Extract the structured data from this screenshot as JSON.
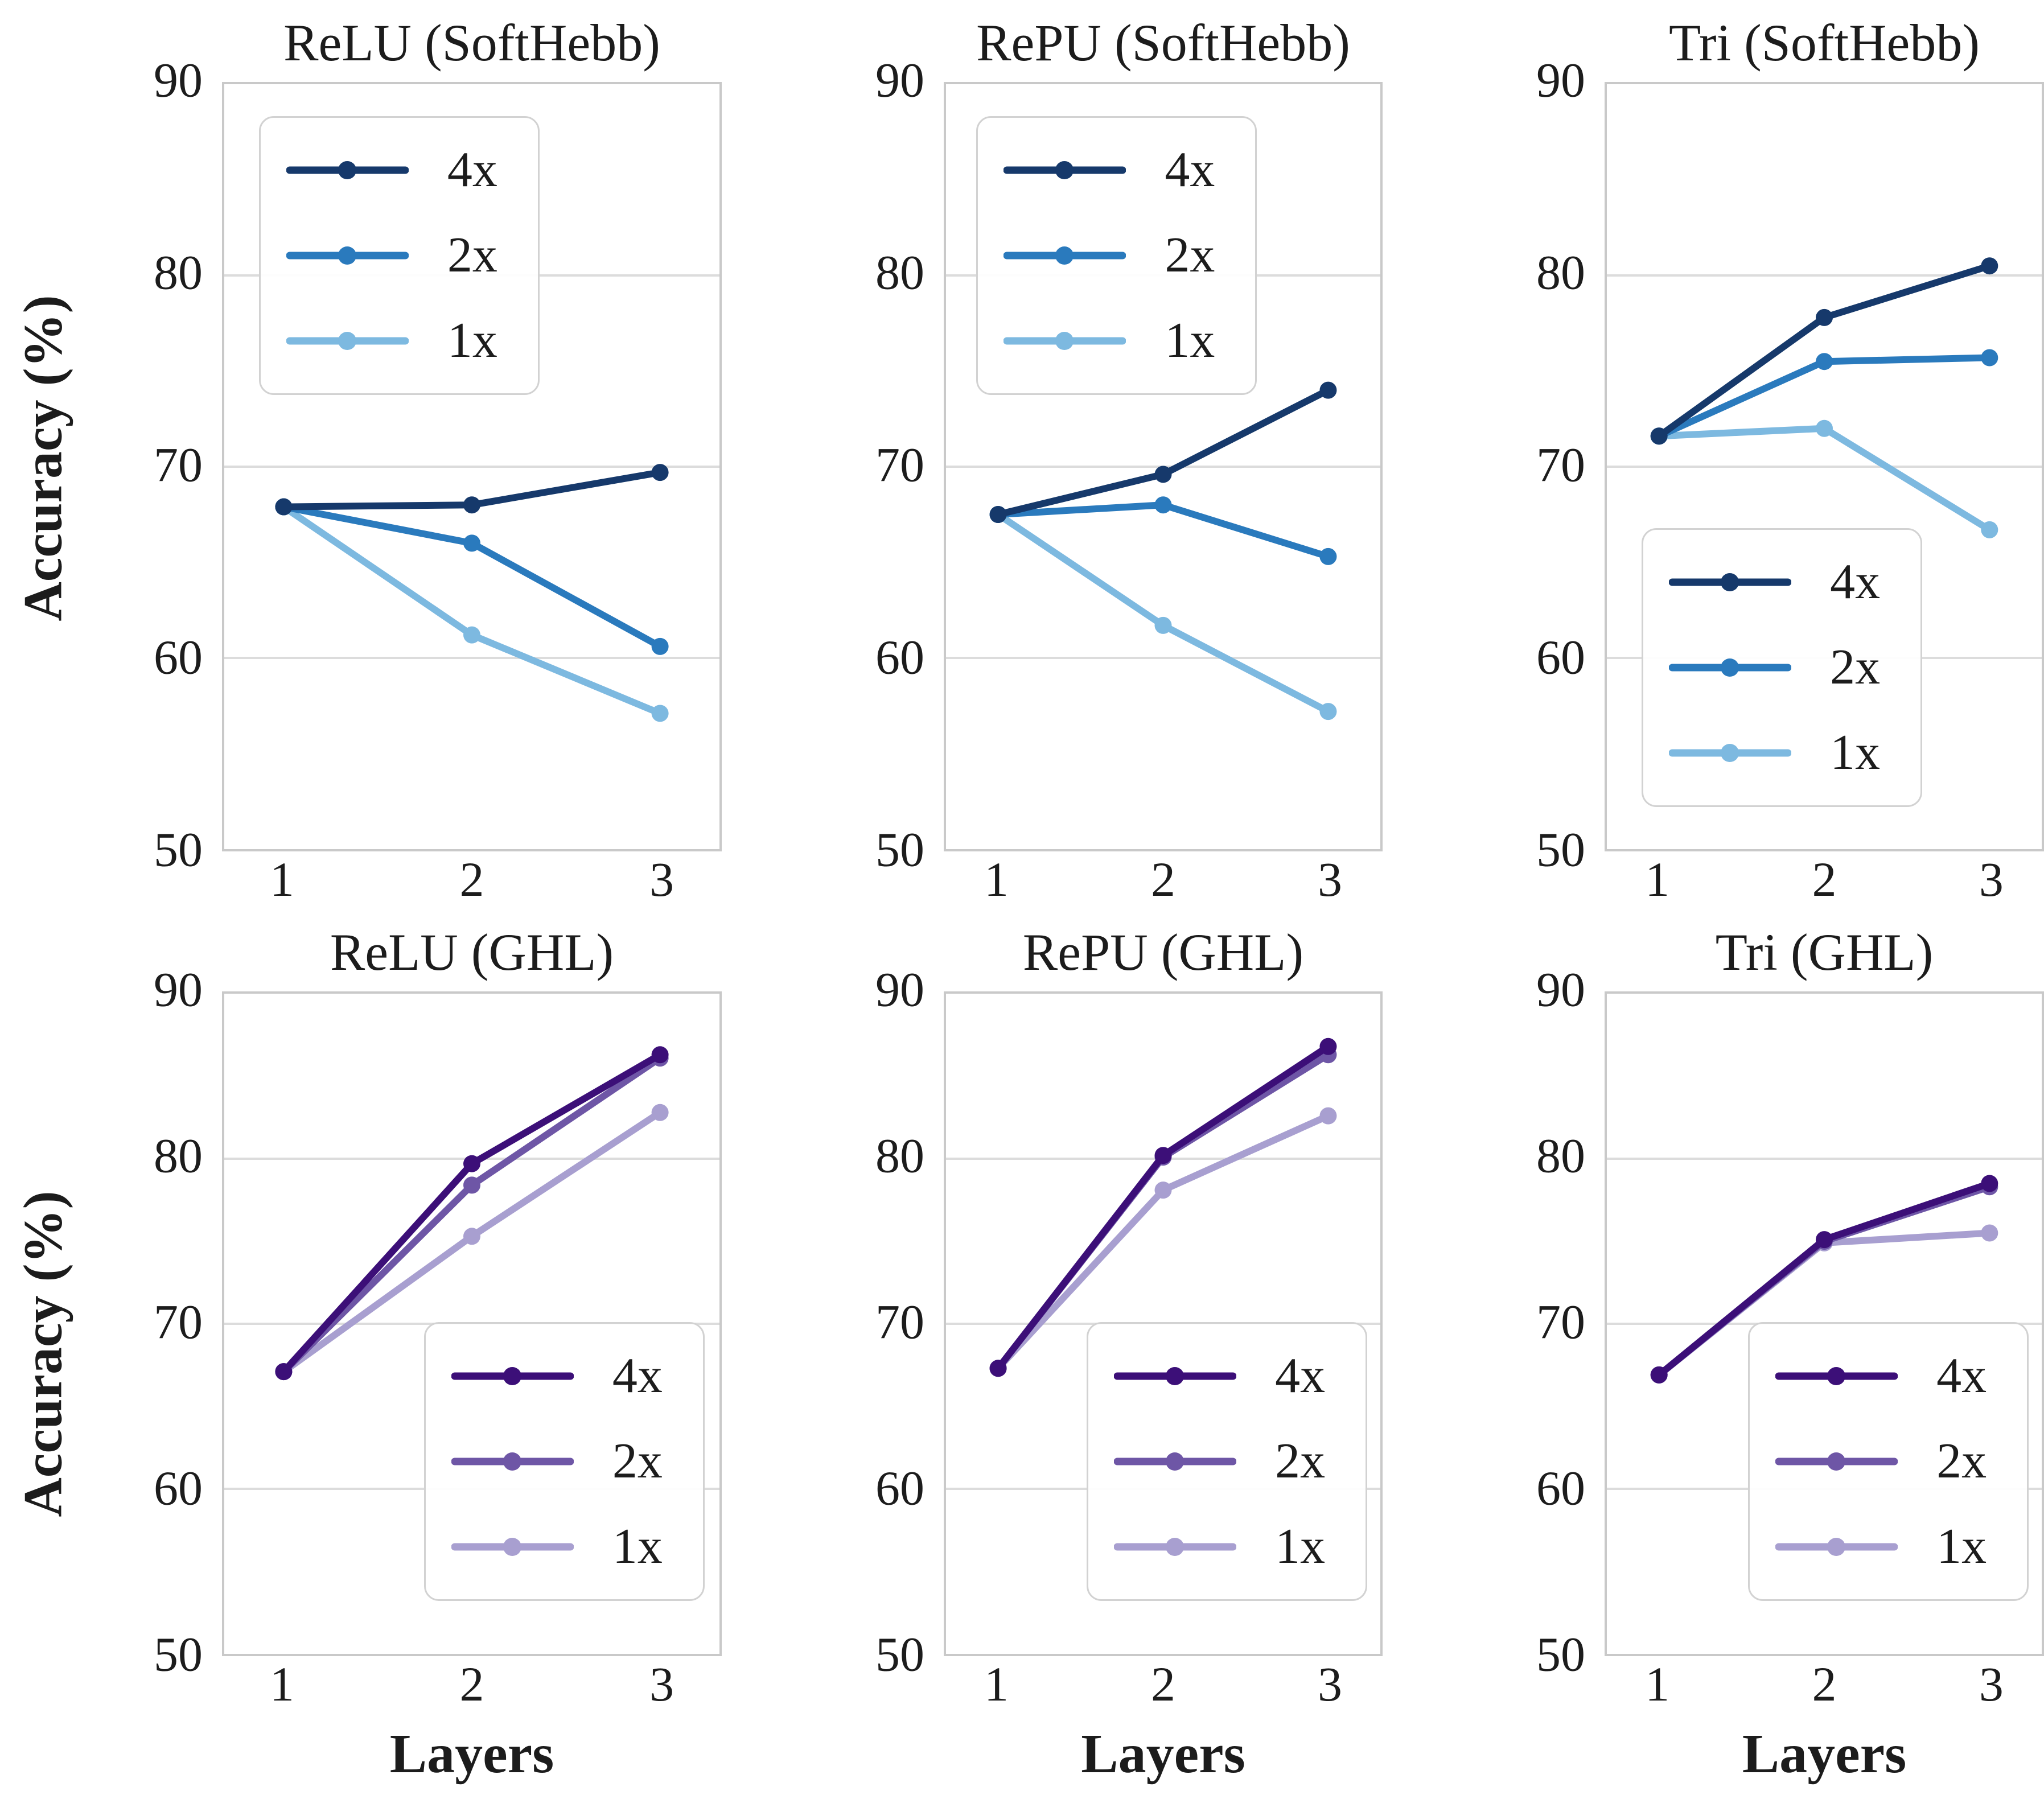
{
  "figure": {
    "ylabel": "Accuracy (%)",
    "xlabel": "Layers",
    "background": "#ffffff",
    "grid_color": "#dcdcdc",
    "spine_color": "#c9c9c9",
    "text_color": "#1c1c1c"
  },
  "legend_labels": [
    "4x",
    "2x",
    "1x"
  ],
  "chart_data": [
    {
      "type": "line",
      "title": "ReLU (SoftHebb)",
      "group": "SoftHebb",
      "xlabel": "",
      "ylabel": "Accuracy (%)",
      "x": [
        1,
        2,
        3
      ],
      "ylim": [
        50,
        90
      ],
      "yticks": [
        90,
        80,
        70,
        60,
        50
      ],
      "grid": "horizontal",
      "legend_loc": "upper-left",
      "series": [
        {
          "name": "4x",
          "color": "#16396b",
          "values": [
            67.9,
            68.0,
            69.7
          ]
        },
        {
          "name": "2x",
          "color": "#2a7abd",
          "values": [
            67.9,
            66.0,
            60.6
          ]
        },
        {
          "name": "1x",
          "color": "#7db9e0",
          "values": [
            67.9,
            61.2,
            57.1
          ]
        }
      ]
    },
    {
      "type": "line",
      "title": "RePU (SoftHebb)",
      "group": "SoftHebb",
      "xlabel": "",
      "ylabel": "Accuracy (%)",
      "x": [
        1,
        2,
        3
      ],
      "ylim": [
        50,
        90
      ],
      "yticks": [
        90,
        80,
        70,
        60,
        50
      ],
      "grid": "horizontal",
      "legend_loc": "upper-left",
      "series": [
        {
          "name": "4x",
          "color": "#16396b",
          "values": [
            67.5,
            69.6,
            74.0
          ]
        },
        {
          "name": "2x",
          "color": "#2a7abd",
          "values": [
            67.5,
            68.0,
            65.3
          ]
        },
        {
          "name": "1x",
          "color": "#7db9e0",
          "values": [
            67.5,
            61.7,
            57.2
          ]
        }
      ]
    },
    {
      "type": "line",
      "title": "Tri (SoftHebb)",
      "group": "SoftHebb",
      "xlabel": "",
      "ylabel": "Accuracy (%)",
      "x": [
        1,
        2,
        3
      ],
      "ylim": [
        50,
        90
      ],
      "yticks": [
        90,
        80,
        70,
        60,
        50
      ],
      "grid": "horizontal",
      "legend_loc": "lower-left",
      "series": [
        {
          "name": "4x",
          "color": "#16396b",
          "values": [
            71.6,
            77.8,
            80.5
          ]
        },
        {
          "name": "2x",
          "color": "#2a7abd",
          "values": [
            71.6,
            75.5,
            75.7
          ]
        },
        {
          "name": "1x",
          "color": "#7db9e0",
          "values": [
            71.6,
            72.0,
            66.7
          ]
        }
      ]
    },
    {
      "type": "line",
      "title": "ReLU (GHL)",
      "group": "GHL",
      "xlabel": "Layers",
      "ylabel": "Accuracy (%)",
      "x": [
        1,
        2,
        3
      ],
      "ylim": [
        50,
        90
      ],
      "yticks": [
        90,
        80,
        70,
        60,
        50
      ],
      "grid": "horizontal",
      "legend_loc": "lower-right",
      "series": [
        {
          "name": "4x",
          "color": "#3c0f78",
          "values": [
            67.1,
            79.7,
            86.3
          ]
        },
        {
          "name": "2x",
          "color": "#6e56a6",
          "values": [
            67.1,
            78.4,
            86.1
          ]
        },
        {
          "name": "1x",
          "color": "#a89fd0",
          "values": [
            67.1,
            75.3,
            82.8
          ]
        }
      ]
    },
    {
      "type": "line",
      "title": "RePU (GHL)",
      "group": "GHL",
      "xlabel": "Layers",
      "ylabel": "Accuracy (%)",
      "x": [
        1,
        2,
        3
      ],
      "ylim": [
        50,
        90
      ],
      "yticks": [
        90,
        80,
        70,
        60,
        50
      ],
      "grid": "horizontal",
      "legend_loc": "lower-right",
      "series": [
        {
          "name": "4x",
          "color": "#3c0f78",
          "values": [
            67.3,
            80.2,
            86.8
          ]
        },
        {
          "name": "2x",
          "color": "#6e56a6",
          "values": [
            67.3,
            80.1,
            86.3
          ]
        },
        {
          "name": "1x",
          "color": "#a89fd0",
          "values": [
            67.3,
            78.1,
            82.6
          ]
        }
      ]
    },
    {
      "type": "line",
      "title": "Tri (GHL)",
      "group": "GHL",
      "xlabel": "Layers",
      "ylabel": "Accuracy (%)",
      "x": [
        1,
        2,
        3
      ],
      "ylim": [
        50,
        90
      ],
      "yticks": [
        90,
        80,
        70,
        60,
        50
      ],
      "grid": "horizontal",
      "legend_loc": "lower-right",
      "series": [
        {
          "name": "4x",
          "color": "#3c0f78",
          "values": [
            66.9,
            75.1,
            78.5
          ]
        },
        {
          "name": "2x",
          "color": "#6e56a6",
          "values": [
            66.9,
            75.0,
            78.3
          ]
        },
        {
          "name": "1x",
          "color": "#a89fd0",
          "values": [
            66.9,
            74.9,
            75.5
          ]
        }
      ]
    }
  ]
}
